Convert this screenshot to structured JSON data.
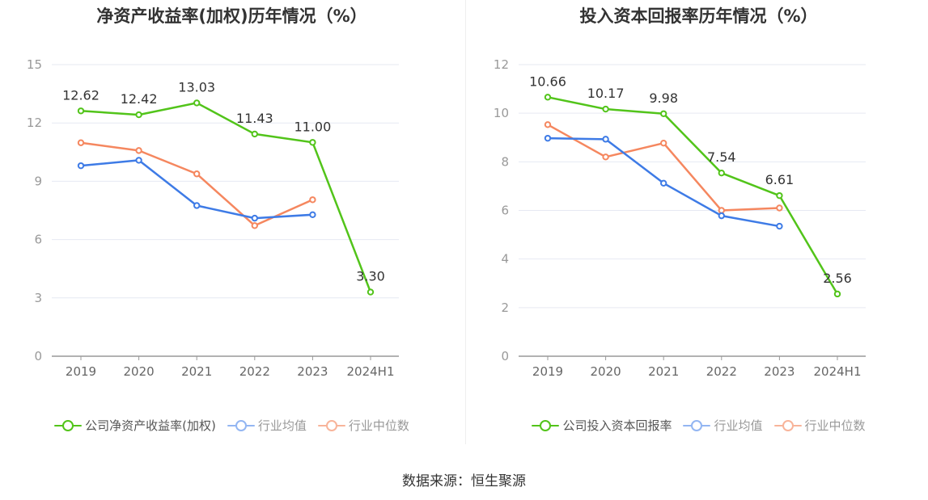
{
  "charts": [
    {
      "title": "净资产收益率(加权)历年情况（%）",
      "legend": [
        {
          "label": "公司净资产收益率(加权)",
          "color": "#52c41a"
        },
        {
          "label": "行业均值",
          "color": "#3e7be6"
        },
        {
          "label": "行业中位数",
          "color": "#f5875f"
        }
      ]
    },
    {
      "title": "投入资本回报率历年情况（%）",
      "legend": [
        {
          "label": "公司投入资本回报率",
          "color": "#52c41a"
        },
        {
          "label": "行业均值",
          "color": "#3e7be6"
        },
        {
          "label": "行业中位数",
          "color": "#f5875f"
        }
      ]
    }
  ],
  "source": "数据来源：恒生聚源",
  "chart_data": [
    {
      "type": "line",
      "title": "净资产收益率(加权)历年情况（%）",
      "categories": [
        "2019",
        "2020",
        "2021",
        "2022",
        "2023",
        "2024H1"
      ],
      "ylim": [
        0,
        15
      ],
      "yticks": [
        "0",
        "3",
        "6",
        "9",
        "12",
        "15"
      ],
      "grid": true,
      "legend_position": "bottom",
      "series": [
        {
          "name": "公司净资产收益率(加权)",
          "color": "#52c41a",
          "labeled": true,
          "labels": [
            "12.62",
            "12.42",
            "13.03",
            "11.43",
            "11.00",
            "3.30"
          ],
          "values": [
            12.62,
            12.42,
            13.03,
            11.43,
            11.0,
            3.3
          ]
        },
        {
          "name": "行业均值",
          "color": "#3e7be6",
          "labeled": false,
          "values": [
            9.8,
            10.08,
            7.75,
            7.1,
            7.28,
            null
          ]
        },
        {
          "name": "行业中位数",
          "color": "#f5875f",
          "labeled": false,
          "values": [
            10.98,
            10.58,
            9.38,
            6.72,
            8.05,
            null
          ]
        }
      ]
    },
    {
      "type": "line",
      "title": "投入资本回报率历年情况（%）",
      "categories": [
        "2019",
        "2020",
        "2021",
        "2022",
        "2023",
        "2024H1"
      ],
      "ylim": [
        0,
        12
      ],
      "yticks": [
        "0",
        "2",
        "4",
        "6",
        "8",
        "10",
        "12"
      ],
      "grid": true,
      "legend_position": "bottom",
      "series": [
        {
          "name": "公司投入资本回报率",
          "color": "#52c41a",
          "labeled": true,
          "labels": [
            "10.66",
            "10.17",
            "9.98",
            "7.54",
            "6.61",
            "2.56"
          ],
          "values": [
            10.66,
            10.17,
            9.98,
            7.54,
            6.61,
            2.56
          ]
        },
        {
          "name": "行业均值",
          "color": "#3e7be6",
          "labeled": false,
          "values": [
            8.97,
            8.93,
            7.12,
            5.78,
            5.35,
            null
          ]
        },
        {
          "name": "行业中位数",
          "color": "#f5875f",
          "labeled": false,
          "values": [
            9.53,
            8.2,
            8.77,
            6.0,
            6.1,
            null
          ]
        }
      ]
    }
  ]
}
